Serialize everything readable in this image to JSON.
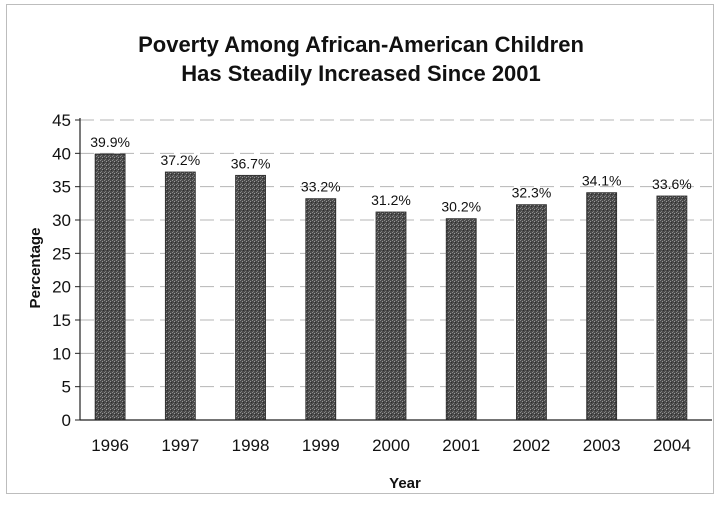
{
  "chart_data": {
    "type": "bar",
    "title_line1": "Poverty Among African-American Children",
    "title_line2": "Has Steadily Increased Since 2001",
    "xlabel": "Year",
    "ylabel": "Percentage",
    "categories": [
      "1996",
      "1997",
      "1998",
      "1999",
      "2000",
      "2001",
      "2002",
      "2003",
      "2004"
    ],
    "values": [
      39.9,
      37.2,
      36.7,
      33.2,
      31.2,
      30.2,
      32.3,
      34.1,
      33.6
    ],
    "data_labels": [
      "39.9%",
      "37.2%",
      "36.7%",
      "33.2%",
      "31.2%",
      "30.2%",
      "32.3%",
      "34.1%",
      "33.6%"
    ],
    "ylim": [
      0,
      45
    ],
    "yticks": [
      0,
      5,
      10,
      15,
      20,
      25,
      30,
      35,
      40,
      45
    ],
    "grid": true,
    "bar_color": "#5f5f5f"
  }
}
